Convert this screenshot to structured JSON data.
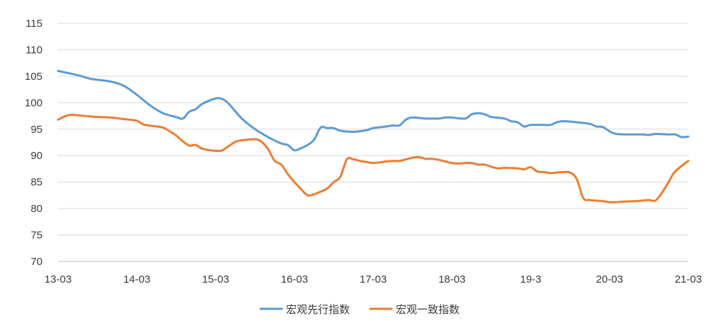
{
  "chart_data": {
    "type": "line",
    "title": "",
    "xlabel": "",
    "ylabel": "",
    "ylim": [
      70,
      115
    ],
    "yticks": [
      70,
      75,
      80,
      85,
      90,
      95,
      100,
      105,
      110,
      115
    ],
    "x_tick_labels": [
      "13-03",
      "14-03",
      "15-03",
      "16-03",
      "17-03",
      "18-03",
      "19-3",
      "20-03",
      "21-03"
    ],
    "x_range": [
      0,
      96
    ],
    "grid": "horizontal",
    "legend_position": "bottom",
    "series": [
      {
        "name": "宏观先行指数",
        "color": "#5b9bd5",
        "points": [
          [
            0,
            106.0
          ],
          [
            3,
            105.2
          ],
          [
            5,
            104.5
          ],
          [
            8,
            104.0
          ],
          [
            10,
            103.2
          ],
          [
            12,
            101.5
          ],
          [
            14,
            99.5
          ],
          [
            16,
            98.0
          ],
          [
            18,
            97.3
          ],
          [
            19,
            97.0
          ],
          [
            20,
            98.3
          ],
          [
            21,
            98.8
          ],
          [
            22,
            99.8
          ],
          [
            24,
            100.8
          ],
          [
            25,
            100.7
          ],
          [
            26,
            99.8
          ],
          [
            28,
            97.0
          ],
          [
            30,
            95.0
          ],
          [
            32,
            93.5
          ],
          [
            34,
            92.3
          ],
          [
            35,
            92.0
          ],
          [
            36,
            91.0
          ],
          [
            37,
            91.4
          ],
          [
            38,
            92.0
          ],
          [
            39,
            93.0
          ],
          [
            40,
            95.3
          ],
          [
            41,
            95.2
          ],
          [
            42,
            95.2
          ],
          [
            43,
            94.7
          ],
          [
            45,
            94.5
          ],
          [
            47,
            94.8
          ],
          [
            48,
            95.2
          ],
          [
            50,
            95.5
          ],
          [
            51,
            95.7
          ],
          [
            52,
            95.7
          ],
          [
            53,
            96.8
          ],
          [
            54,
            97.2
          ],
          [
            56,
            97.0
          ],
          [
            57,
            97.0
          ],
          [
            58,
            97.0
          ],
          [
            59,
            97.2
          ],
          [
            60,
            97.2
          ],
          [
            62,
            97.0
          ],
          [
            63,
            97.8
          ],
          [
            64,
            98.0
          ],
          [
            65,
            97.8
          ],
          [
            66,
            97.3
          ],
          [
            68,
            97.0
          ],
          [
            69,
            96.5
          ],
          [
            70,
            96.3
          ],
          [
            71,
            95.5
          ],
          [
            72,
            95.8
          ],
          [
            74,
            95.8
          ],
          [
            75,
            95.8
          ],
          [
            76,
            96.3
          ],
          [
            77,
            96.5
          ],
          [
            79,
            96.3
          ],
          [
            81,
            96.0
          ],
          [
            82,
            95.5
          ],
          [
            83,
            95.4
          ],
          [
            84,
            94.6
          ],
          [
            85,
            94.1
          ],
          [
            87,
            94.0
          ],
          [
            89,
            94.0
          ],
          [
            90,
            93.9
          ],
          [
            91,
            94.1
          ],
          [
            93,
            94.0
          ],
          [
            94,
            94.0
          ],
          [
            95,
            93.5
          ],
          [
            96,
            93.6
          ]
        ]
      },
      {
        "name": "宏观一致指数",
        "color": "#ed7d31",
        "points": [
          [
            0,
            96.8
          ],
          [
            1,
            97.4
          ],
          [
            2,
            97.7
          ],
          [
            4,
            97.5
          ],
          [
            6,
            97.3
          ],
          [
            8,
            97.2
          ],
          [
            10,
            96.9
          ],
          [
            12,
            96.6
          ],
          [
            13,
            95.9
          ],
          [
            15,
            95.5
          ],
          [
            16,
            95.3
          ],
          [
            17,
            94.6
          ],
          [
            18,
            93.8
          ],
          [
            19,
            92.7
          ],
          [
            20,
            91.9
          ],
          [
            21,
            92.0
          ],
          [
            22,
            91.3
          ],
          [
            24,
            90.9
          ],
          [
            25,
            91.0
          ],
          [
            26,
            91.8
          ],
          [
            27,
            92.6
          ],
          [
            28,
            92.9
          ],
          [
            30,
            93.1
          ],
          [
            31,
            92.6
          ],
          [
            32,
            91.2
          ],
          [
            33,
            89.0
          ],
          [
            34,
            88.3
          ],
          [
            35,
            86.5
          ],
          [
            36,
            85.0
          ],
          [
            37,
            83.7
          ],
          [
            38,
            82.5
          ],
          [
            39,
            82.7
          ],
          [
            40,
            83.2
          ],
          [
            41,
            83.8
          ],
          [
            42,
            85.0
          ],
          [
            43,
            86.0
          ],
          [
            44,
            89.3
          ],
          [
            45,
            89.3
          ],
          [
            46,
            89.0
          ],
          [
            47,
            88.8
          ],
          [
            48,
            88.6
          ],
          [
            50,
            88.9
          ],
          [
            51,
            89.0
          ],
          [
            52,
            89.0
          ],
          [
            53,
            89.3
          ],
          [
            54,
            89.6
          ],
          [
            55,
            89.7
          ],
          [
            56,
            89.4
          ],
          [
            57,
            89.4
          ],
          [
            58,
            89.2
          ],
          [
            59,
            88.9
          ],
          [
            60,
            88.6
          ],
          [
            61,
            88.5
          ],
          [
            62,
            88.6
          ],
          [
            63,
            88.6
          ],
          [
            64,
            88.3
          ],
          [
            65,
            88.3
          ],
          [
            66,
            87.9
          ],
          [
            67,
            87.6
          ],
          [
            68,
            87.7
          ],
          [
            70,
            87.6
          ],
          [
            71,
            87.4
          ],
          [
            72,
            87.8
          ],
          [
            73,
            87.0
          ],
          [
            74,
            86.9
          ],
          [
            75,
            86.7
          ],
          [
            76,
            86.8
          ],
          [
            77,
            86.9
          ],
          [
            78,
            86.8
          ],
          [
            79,
            85.6
          ],
          [
            80,
            82.0
          ],
          [
            81,
            81.6
          ],
          [
            82,
            81.5
          ],
          [
            83,
            81.4
          ],
          [
            84,
            81.2
          ],
          [
            85,
            81.2
          ],
          [
            86,
            81.3
          ],
          [
            88,
            81.4
          ],
          [
            89,
            81.5
          ],
          [
            90,
            81.6
          ],
          [
            91,
            81.5
          ],
          [
            92,
            83.0
          ],
          [
            93,
            85.0
          ],
          [
            94,
            87.0
          ],
          [
            96,
            89.0
          ]
        ]
      }
    ]
  }
}
